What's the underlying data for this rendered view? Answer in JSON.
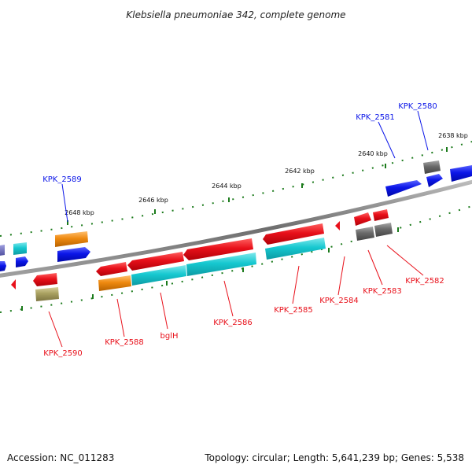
{
  "title": "Klebsiella pneumoniae 342, complete genome",
  "footer": {
    "accession": "Accession: NC_011283",
    "summary": "Topology: circular; Length: 5,641,239 bp; Genes: 5,538"
  },
  "ticks": [
    "2638 kbp",
    "2640 kbp",
    "2642 kbp",
    "2644 kbp",
    "2646 kbp",
    "2648 kbp"
  ],
  "labels": [
    "KPK_2580",
    "KPK_2581",
    "KPK_2589",
    "KPK_2590",
    "KPK_2588",
    "bglH",
    "KPK_2586",
    "KPK_2585",
    "KPK_2584",
    "KPK_2583",
    "KPK_2582"
  ],
  "colors": {
    "red": "#e8101a",
    "blue": "#0b16e8",
    "cyan": "#16c8d0",
    "orange": "#ef8a10",
    "gray": "#6a6a6a",
    "olive": "#a8a060",
    "green": "#1b7a1b",
    "backbone": "#777777"
  }
}
